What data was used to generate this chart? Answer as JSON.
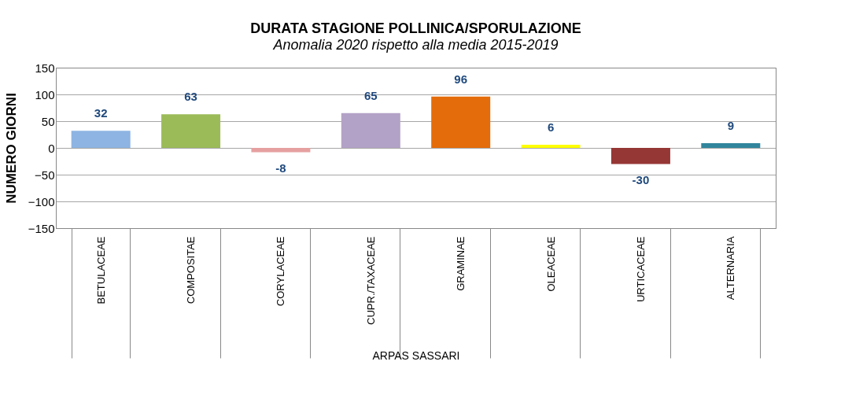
{
  "chart_data": {
    "type": "bar",
    "title": "DURATA STAGIONE POLLINICA/SPORULAZIONE",
    "subtitle": "Anomalia 2020 rispetto alla media 2015-2019",
    "ylabel": "NUMERO GIORNI",
    "xlabel": "ARPAS SASSARI",
    "categories": [
      "BETULACEAE",
      "COMPOSITAE",
      "CORYLACEAE",
      "CUPR./TAXACEAE",
      "GRAMINAE",
      "OLEACEAE",
      "URTICACEAE",
      "ALTERNARIA"
    ],
    "values": [
      32,
      63,
      -8,
      65,
      96,
      6,
      -30,
      9
    ],
    "colors": [
      "#8db4e2",
      "#9bbb59",
      "#e6a0a0",
      "#b3a2c7",
      "#e46c0a",
      "#ffff00",
      "#953735",
      "#31859c"
    ],
    "ylim": [
      -150,
      150
    ],
    "yticks": [
      -150,
      -100,
      -50,
      0,
      50,
      100,
      150
    ],
    "grid": "y",
    "data_labels": true
  }
}
